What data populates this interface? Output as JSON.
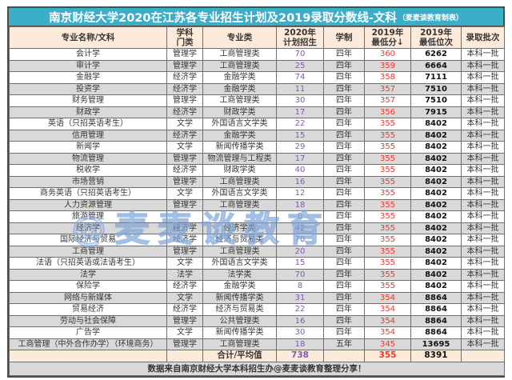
{
  "title": {
    "main": "南京财经大学2020在江苏各专业招生计划及2019录取分数线-文科",
    "credit": "（麦麦谈教育制表）"
  },
  "watermark": {
    "text": "@麦麦谈教育"
  },
  "colors": {
    "title_bar": "#3CAFC8",
    "header_bg": "#FCEADB",
    "row_stripe": "#D9D9D9",
    "plan_number": "#7D5CA9",
    "score_number": "#E8382D"
  },
  "table": {
    "headers": [
      [
        "专业名称/文科"
      ],
      [
        "学科",
        "门类"
      ],
      [
        "专业类"
      ],
      [
        "2020年",
        "计划招生"
      ],
      [
        "学制"
      ],
      [
        "2019年",
        "最低分↓"
      ],
      [
        "2019年",
        "最低位次"
      ],
      [
        "录取批次"
      ]
    ],
    "rows": [
      [
        "会计学",
        "管理学",
        "工商管理类",
        "70",
        "四年",
        "360",
        "6262",
        "本科一批"
      ],
      [
        "审计学",
        "管理学",
        "工商管理类",
        "25",
        "四年",
        "359",
        "6664",
        "本科一批"
      ],
      [
        "金融学",
        "经济学",
        "金融学类",
        "74",
        "四年",
        "358",
        "7111",
        "本科一批"
      ],
      [
        "投资学",
        "经济学",
        "金融学类",
        "11",
        "四年",
        "357",
        "7510",
        "本科一批"
      ],
      [
        "财务管理",
        "管理学",
        "工商管理类",
        "30",
        "四年",
        "357",
        "7510",
        "本科一批"
      ],
      [
        "财政学",
        "经济学",
        "财政学类",
        "17",
        "四年",
        "356",
        "7915",
        "本科一批"
      ],
      [
        "英语（只招英语考生）",
        "文学",
        "外国语言文学类",
        "22",
        "四年",
        "355",
        "8402",
        "本科一批"
      ],
      [
        "信用管理",
        "经济学",
        "金融学类",
        "15",
        "四年",
        "355",
        "8402",
        "本科一批"
      ],
      [
        "新闻学",
        "文学",
        "新闻传播学类",
        "29",
        "四年",
        "355",
        "8402",
        "本科一批"
      ],
      [
        "物流管理",
        "管理学",
        "物流管理与工程类",
        "17",
        "四年",
        "355",
        "8402",
        "本科一批"
      ],
      [
        "税收学",
        "经济学",
        "财政学类",
        "40",
        "四年",
        "355",
        "8402",
        "本科一批"
      ],
      [
        "市场营销",
        "管理学",
        "工商管理类",
        "16",
        "四年",
        "355",
        "8402",
        "本科一批"
      ],
      [
        "商务英语（只招英语考生）",
        "文学",
        "外国语言文学类",
        "12",
        "四年",
        "355",
        "8402",
        "本科一批"
      ],
      [
        "人力资源管理",
        "管理学",
        "工商管理类",
        "18",
        "四年",
        "355",
        "8402",
        "本科一批"
      ],
      [
        "旅游管理",
        "",
        "",
        "0",
        "四年",
        "355",
        "8402",
        "本科一批"
      ],
      [
        "经济学",
        "经济学",
        "经济学类",
        "42",
        "四年",
        "355",
        "8402",
        "本科一批"
      ],
      [
        "国际经济与贸易",
        "经济学",
        "经济与贸易类",
        "70",
        "四年",
        "355",
        "8402",
        "本科一批"
      ],
      [
        "工商管理",
        "管理学",
        "工商管理类",
        "20",
        "四年",
        "355",
        "8402",
        "本科一批"
      ],
      [
        "法语（只招英语或法语考生）",
        "文学",
        "外国语言文学类",
        "15",
        "四年",
        "355",
        "8402",
        "本科一批"
      ],
      [
        "法学",
        "法学",
        "法学类",
        "70",
        "四年",
        "355",
        "8402",
        "本科一批"
      ],
      [
        "保险学",
        "经济学",
        "金融学类",
        "8",
        "四年",
        "355",
        "8402",
        "本科一批"
      ],
      [
        "网络与新媒体",
        "文学",
        "新闻传播学类",
        "31",
        "四年",
        "354",
        "8864",
        "本科一批"
      ],
      [
        "贸易经济",
        "经济学",
        "经济与贸易类",
        "22",
        "四年",
        "354",
        "8864",
        "本科一批"
      ],
      [
        "劳动与社会保障",
        "管理学",
        "公共管理类",
        "16",
        "四年",
        "354",
        "8864",
        "本科一批"
      ],
      [
        "广告学",
        "文学",
        "新闻传播学类",
        "30",
        "四年",
        "354",
        "8864",
        "本科一批"
      ],
      [
        "工商管理（中外合作办学）（环境商务）",
        "管理学",
        "工商管理类",
        "18",
        "五年",
        "345",
        "13695",
        "本科一批"
      ]
    ],
    "summary": [
      "",
      "",
      "合计/平均值",
      "738",
      "",
      "355",
      "8391",
      ""
    ],
    "footer": "数据来自南京财经大学本科招生办@麦麦谈教育整理分享！"
  }
}
